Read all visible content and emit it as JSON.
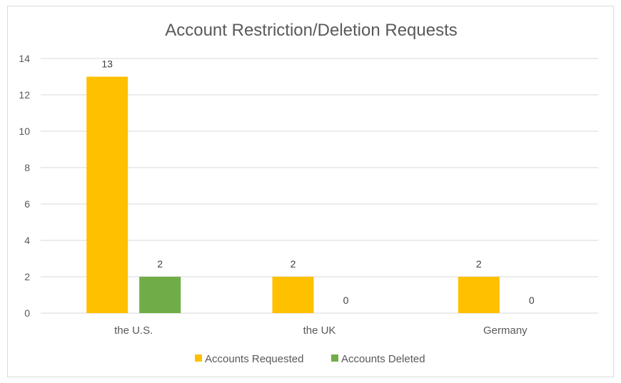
{
  "chart_data": {
    "type": "bar",
    "title": "Account Restriction/Deletion Requests",
    "xlabel": "",
    "ylabel": "",
    "categories": [
      "the U.S.",
      "the UK",
      "Germany"
    ],
    "series": [
      {
        "name": "Accounts Requested",
        "values": [
          13,
          2,
          2
        ],
        "color": "#FFC000"
      },
      {
        "name": "Accounts Deleted",
        "values": [
          2,
          0,
          0
        ],
        "color": "#70AD47"
      }
    ],
    "ylim": [
      0,
      14
    ],
    "yticks": [
      0,
      2,
      4,
      6,
      8,
      10,
      12,
      14
    ],
    "grid": true,
    "legend": "bottom",
    "data_labels": true
  }
}
